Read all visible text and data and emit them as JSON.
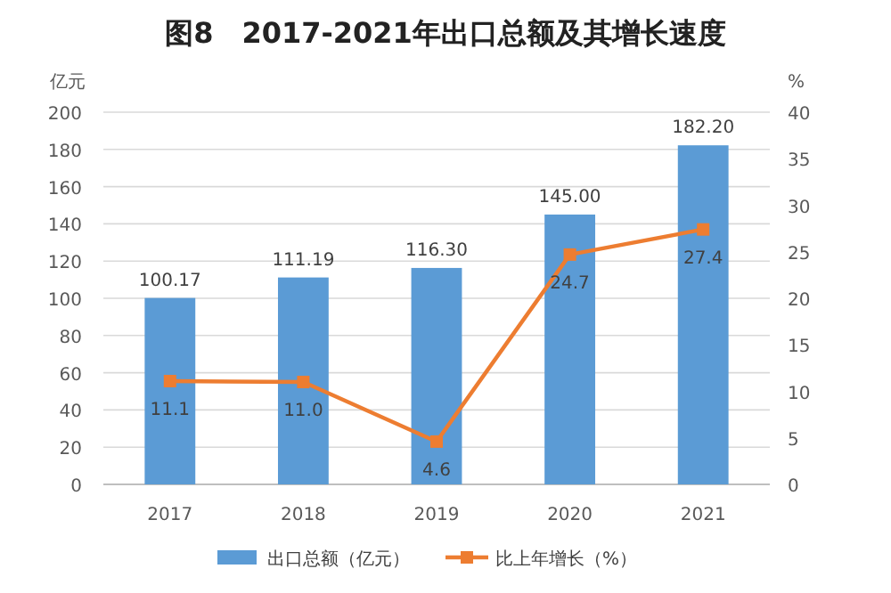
{
  "chart_data": {
    "type": "bar",
    "title": "图8　2017-2021年出口总额及其增长速度",
    "ylabel": "亿元",
    "y2label": "%",
    "categories": [
      "2017",
      "2018",
      "2019",
      "2020",
      "2021"
    ],
    "series": [
      {
        "name": "出口总额（亿元）",
        "color": "#5b9bd5",
        "values": [
          100.17,
          111.19,
          116.3,
          145.0,
          182.2
        ],
        "value_labels": [
          "100.17",
          "111.19",
          "116.30",
          "145.00",
          "182.20"
        ]
      },
      {
        "name": "比上年增长（%）",
        "type": "line",
        "axis": "y2",
        "color": "#ed7d31",
        "marker": "square",
        "values": [
          11.1,
          11.0,
          4.6,
          24.7,
          27.4
        ],
        "value_labels": [
          "11.1",
          "11.0",
          "4.6",
          "24.7",
          "27.4"
        ]
      }
    ],
    "ylim": [
      0,
      200
    ],
    "yticks": [
      0,
      20,
      40,
      60,
      80,
      100,
      120,
      140,
      160,
      180,
      200
    ],
    "y2lim": [
      0,
      40
    ],
    "y2ticks": [
      0,
      5,
      10,
      15,
      20,
      25,
      30,
      35,
      40
    ],
    "grid": "y",
    "legend": "bottom"
  }
}
